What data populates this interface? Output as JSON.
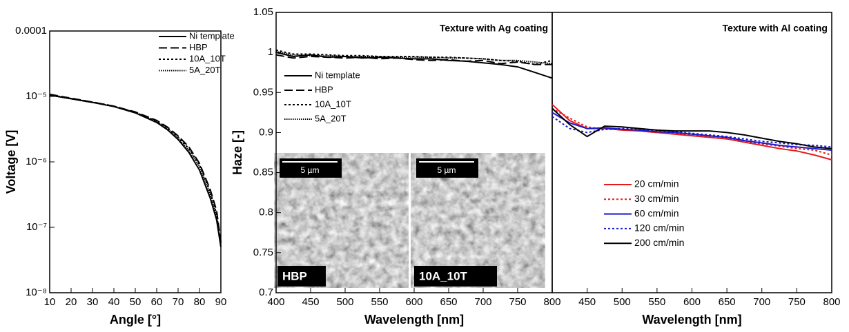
{
  "chart_data": [
    {
      "type": "line",
      "x_label": "Angle [°]",
      "y_label": "Voltage [V]",
      "log_y": true,
      "legend": "upper right",
      "xlim": [
        10,
        90
      ],
      "xticks": [
        10,
        20,
        30,
        40,
        50,
        60,
        70,
        80,
        90
      ],
      "ylim": [
        1e-08,
        0.0001
      ],
      "yticks": [
        {
          "value": 1e-08,
          "label": "10⁻⁸"
        },
        {
          "value": 1e-07,
          "label": "10⁻⁷"
        },
        {
          "value": 1e-06,
          "label": "10⁻⁶"
        },
        {
          "value": 1e-05,
          "label": "10⁻⁵"
        },
        0.0001
      ],
      "x": [
        10,
        20,
        30,
        40,
        50,
        60,
        65,
        70,
        75,
        80,
        85,
        88,
        90
      ],
      "series": [
        {
          "name": "Ni template",
          "color": "#000000",
          "dash": "solid",
          "values": [
            1.05e-05,
            9.2e-06,
            8.1e-06,
            7e-06,
            5.6e-06,
            4e-06,
            3.1e-06,
            2.2e-06,
            1.4e-06,
            7.5e-07,
            2.8e-07,
            1.3e-07,
            5e-08
          ]
        },
        {
          "name": "HBP",
          "color": "#000000",
          "dash": "dashed",
          "values": [
            1.08e-05,
            9.4e-06,
            8.2e-06,
            7.1e-06,
            5.8e-06,
            4.3e-06,
            3.4e-06,
            2.5e-06,
            1.7e-06,
            9.5e-07,
            3.8e-07,
            1.8e-07,
            6e-08
          ]
        },
        {
          "name": "10A_10T",
          "color": "#000000",
          "dash": "dotted",
          "values": [
            1.06e-05,
            9.3e-06,
            8.2e-06,
            7.1e-06,
            5.7e-06,
            4.2e-06,
            3.3e-06,
            2.4e-06,
            1.6e-06,
            9e-07,
            3.5e-07,
            1.6e-07,
            5.5e-08
          ]
        },
        {
          "name": "5A_20T",
          "color": "#000000",
          "dash": "fine-dotted",
          "values": [
            1.04e-05,
            9.2e-06,
            8.1e-06,
            7e-06,
            5.7e-06,
            4.1e-06,
            3.2e-06,
            2.3e-06,
            1.5e-06,
            8.5e-07,
            3.2e-07,
            1.5e-07,
            5e-08
          ]
        }
      ]
    },
    {
      "type": "line",
      "x_label": "Wavelength [nm]",
      "y_label": "Haze [-]",
      "legend": "center left",
      "annotation": "Texture with Ag coating",
      "xlim": [
        400,
        800
      ],
      "xticks": [
        400,
        450,
        500,
        550,
        600,
        650,
        700,
        750,
        800
      ],
      "ylim": [
        0.7,
        1.05
      ],
      "yticks": [
        0.7,
        0.75,
        0.8,
        0.85,
        0.9,
        0.95,
        1,
        1.05
      ],
      "insets": [
        {
          "label": "HBP",
          "scale": "5 µm"
        },
        {
          "label": "10A_10T",
          "scale": "5 µm"
        }
      ],
      "x": [
        400,
        425,
        450,
        475,
        500,
        525,
        550,
        575,
        600,
        625,
        650,
        675,
        700,
        725,
        750,
        775,
        800
      ],
      "series": [
        {
          "name": "Ni template",
          "color": "#000000",
          "dash": "solid",
          "values": [
            1.0,
            0.995,
            0.997,
            0.994,
            0.995,
            0.993,
            0.994,
            0.993,
            0.992,
            0.992,
            0.99,
            0.989,
            0.987,
            0.985,
            0.982,
            0.975,
            0.968
          ]
        },
        {
          "name": "HBP",
          "color": "#000000",
          "dash": "dashed",
          "values": [
            0.997,
            0.993,
            0.995,
            0.994,
            0.993,
            0.994,
            0.992,
            0.993,
            0.991,
            0.99,
            0.991,
            0.989,
            0.99,
            0.986,
            0.988,
            0.985,
            0.985
          ]
        },
        {
          "name": "10A_10T",
          "color": "#000000",
          "dash": "dotted",
          "values": [
            1.003,
            0.998,
            0.998,
            0.997,
            0.996,
            0.996,
            0.995,
            0.995,
            0.995,
            0.994,
            0.994,
            0.993,
            0.992,
            0.99,
            0.989,
            0.985,
            0.99
          ]
        },
        {
          "name": "5A_20T",
          "color": "#000000",
          "dash": "fine-dotted",
          "values": [
            1.001,
            0.997,
            0.996,
            0.996,
            0.995,
            0.995,
            0.995,
            0.994,
            0.994,
            0.994,
            0.993,
            0.993,
            0.992,
            0.99,
            0.99,
            0.988,
            0.986
          ]
        }
      ]
    },
    {
      "type": "line",
      "x_label": "Wavelength [nm]",
      "legend": "lower left",
      "annotation": "Texture with Al coating",
      "xlim": [
        400,
        800
      ],
      "xticks": [
        450,
        500,
        550,
        600,
        650,
        700,
        750,
        800
      ],
      "ylim": [
        0.7,
        1.05
      ],
      "x": [
        400,
        425,
        450,
        475,
        500,
        525,
        550,
        575,
        600,
        625,
        650,
        675,
        700,
        725,
        750,
        775,
        800
      ],
      "series": [
        {
          "name": "20 cm/min",
          "color": "#e41a1c",
          "dash": "solid",
          "values": [
            0.935,
            0.915,
            0.905,
            0.905,
            0.903,
            0.902,
            0.9,
            0.898,
            0.896,
            0.894,
            0.892,
            0.888,
            0.884,
            0.88,
            0.877,
            0.872,
            0.866
          ]
        },
        {
          "name": "30 cm/min",
          "color": "#e41a1c",
          "dash": "dotted",
          "values": [
            0.93,
            0.918,
            0.907,
            0.904,
            0.904,
            0.902,
            0.9,
            0.899,
            0.897,
            0.895,
            0.893,
            0.889,
            0.886,
            0.883,
            0.88,
            0.878,
            0.872
          ]
        },
        {
          "name": "60 cm/min",
          "color": "#1a1acc",
          "dash": "solid",
          "values": [
            0.925,
            0.912,
            0.905,
            0.906,
            0.904,
            0.903,
            0.901,
            0.9,
            0.898,
            0.896,
            0.894,
            0.89,
            0.887,
            0.884,
            0.882,
            0.88,
            0.878
          ]
        },
        {
          "name": "120 cm/min",
          "color": "#1a1acc",
          "dash": "dotted",
          "values": [
            0.92,
            0.905,
            0.9,
            0.904,
            0.905,
            0.904,
            0.902,
            0.901,
            0.899,
            0.897,
            0.895,
            0.892,
            0.889,
            0.887,
            0.885,
            0.884,
            0.882
          ]
        },
        {
          "name": "200 cm/min",
          "color": "#000000",
          "dash": "solid",
          "values": [
            0.93,
            0.91,
            0.895,
            0.908,
            0.907,
            0.905,
            0.903,
            0.902,
            0.902,
            0.902,
            0.9,
            0.897,
            0.893,
            0.889,
            0.886,
            0.882,
            0.88
          ]
        }
      ]
    }
  ]
}
